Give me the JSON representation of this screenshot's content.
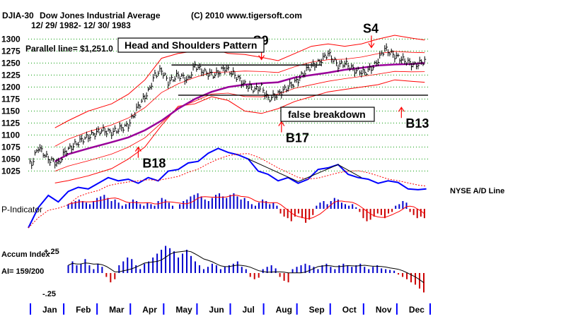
{
  "chart_data": {
    "type": "line",
    "header": {
      "symbol": "DJIA-30",
      "name": "Dow Jones Industrial Average",
      "copyright": "(C) 2010 www.tigersoft.com",
      "date_range": "12/ 29/ 1982- 12/ 30/ 1983"
    },
    "parallel_line_label": "Parallel line= $1,251.0",
    "y_axis": {
      "ylim": [
        1005,
        1305
      ],
      "ticks": [
        1300,
        1275,
        1250,
        1225,
        1200,
        1175,
        1150,
        1125,
        1100,
        1075,
        1050,
        1025
      ]
    },
    "months": [
      "Jan",
      "Feb",
      "Mar",
      "Apr",
      "May",
      "Jun",
      "Jul",
      "Aug",
      "Sep",
      "Oct",
      "Nov",
      "Dec"
    ],
    "djia": {
      "x": [
        0.1,
        0.3,
        0.6,
        0.9,
        1.1,
        1.4,
        1.6,
        1.9,
        2.2,
        2.5,
        2.8,
        3.0,
        3.3,
        3.6,
        3.8,
        4.0,
        4.2,
        4.5,
        4.8,
        5.0,
        5.3,
        5.6,
        5.9,
        6.2,
        6.5,
        6.8,
        7.0,
        7.2,
        7.5,
        7.8,
        8.1,
        8.4,
        8.7,
        9.0,
        9.3,
        9.5,
        9.8,
        10.1,
        10.4,
        10.7,
        11.0,
        11.3,
        11.6,
        11.9
      ],
      "values": [
        1040,
        1075,
        1050,
        1040,
        1065,
        1080,
        1090,
        1100,
        1110,
        1105,
        1115,
        1120,
        1160,
        1190,
        1225,
        1235,
        1210,
        1225,
        1215,
        1245,
        1230,
        1225,
        1240,
        1225,
        1205,
        1195,
        1200,
        1175,
        1185,
        1200,
        1215,
        1240,
        1250,
        1270,
        1245,
        1250,
        1235,
        1230,
        1245,
        1280,
        1265,
        1255,
        1245,
        1255
      ]
    },
    "overlays": {
      "x": [
        0.8,
        1.2,
        1.8,
        2.5,
        3.0,
        3.5,
        4.0,
        4.5,
        5.0,
        5.5,
        6.0,
        6.5,
        7.0,
        7.5,
        8.0,
        8.5,
        9.0,
        9.5,
        10.0,
        10.5,
        11.0,
        11.5,
        11.9
      ],
      "ma": [
        1045,
        1060,
        1072,
        1085,
        1095,
        1110,
        1130,
        1155,
        1175,
        1190,
        1200,
        1205,
        1208,
        1210,
        1220,
        1225,
        1230,
        1236,
        1240,
        1245,
        1247,
        1248,
        1250
      ],
      "upper_band": [
        1115,
        1130,
        1150,
        1165,
        1185,
        1215,
        1260,
        1270,
        1275,
        1280,
        1270,
        1268,
        1262,
        1255,
        1270,
        1285,
        1290,
        1285,
        1290,
        1300,
        1308,
        1302,
        1298
      ],
      "lower_band": [
        1000,
        1005,
        1015,
        1030,
        1050,
        1075,
        1120,
        1160,
        1165,
        1180,
        1172,
        1150,
        1145,
        1155,
        1170,
        1180,
        1190,
        1195,
        1200,
        1205,
        1215,
        1212,
        1210
      ]
    },
    "breadth_line": {
      "name": "NYSE A/D Line",
      "x": [
        0.0,
        0.3,
        0.6,
        0.9,
        1.2,
        1.5,
        1.8,
        2.1,
        2.4,
        2.7,
        3.0,
        3.3,
        3.6,
        3.9,
        4.2,
        4.5,
        4.8,
        5.1,
        5.4,
        5.7,
        6.0,
        6.3,
        6.6,
        6.9,
        7.2,
        7.5,
        7.8,
        8.1,
        8.4,
        8.7,
        9.0,
        9.3,
        9.6,
        9.9,
        10.2,
        10.5,
        10.8,
        11.1,
        11.4,
        11.7,
        11.95
      ],
      "values": [
        0.0,
        0.25,
        0.4,
        0.32,
        0.45,
        0.5,
        0.48,
        0.55,
        0.62,
        0.58,
        0.6,
        0.55,
        0.62,
        0.58,
        0.7,
        0.72,
        0.8,
        0.82,
        0.92,
        0.98,
        0.93,
        0.9,
        0.85,
        0.7,
        0.66,
        0.58,
        0.62,
        0.55,
        0.6,
        0.72,
        0.74,
        0.78,
        0.66,
        0.62,
        0.6,
        0.55,
        0.58,
        0.56,
        0.48,
        0.47,
        0.48
      ]
    },
    "p_indicator": {
      "label": "P-Indicator",
      "values": [
        0.3,
        0.4,
        0.5,
        0.6,
        0.5,
        0.4,
        0.3,
        0.5,
        0.7,
        0.8,
        0.9,
        0.7,
        0.5,
        0.6,
        0.4,
        0.2,
        0.3,
        0.4,
        0.6,
        0.5,
        0.3,
        0.2,
        0.4,
        0.3,
        0.2,
        0.5,
        0.7,
        0.6,
        0.4,
        0.2,
        0.0,
        0.3,
        0.5,
        0.6,
        0.8,
        0.9,
        1.0,
        0.8,
        0.6,
        0.5,
        0.7,
        0.9,
        1.0,
        0.8,
        0.7,
        0.9,
        1.0,
        0.8,
        0.6,
        0.7,
        0.5,
        0.3,
        0.2,
        0.4,
        0.6,
        0.5,
        0.3,
        0.4,
        0.2,
        -0.3,
        -0.5,
        -0.6,
        -0.8,
        -0.5,
        -0.3,
        -0.6,
        -0.9,
        -0.7,
        -0.4,
        0.2,
        0.4,
        0.5,
        0.3,
        0.5,
        0.7,
        0.6,
        0.4,
        0.3,
        0.2,
        0.3,
        0.1,
        -0.2,
        -0.6,
        -0.8,
        -0.7,
        -0.5,
        -0.3,
        -0.4,
        -0.6,
        -0.3,
        -0.2,
        0.2,
        0.3,
        0.5,
        0.4,
        -0.2,
        -0.4,
        -0.6,
        -0.5,
        -0.6
      ]
    },
    "accum_index": {
      "label": "Accum Index",
      "summary": "AI= 159/200",
      "ticks": [
        "+.25",
        "-.25"
      ],
      "values": [
        0.1,
        0.15,
        0.1,
        0.12,
        0.18,
        0.1,
        0.05,
        0.12,
        0.08,
        -0.05,
        -0.12,
        -0.08,
        0.1,
        0.15,
        0.2,
        0.18,
        0.1,
        0.05,
        0.12,
        0.15,
        0.2,
        0.25,
        0.3,
        0.35,
        0.32,
        0.28,
        0.2,
        0.25,
        0.3,
        0.22,
        0.15,
        0.1,
        0.05,
        0.08,
        0.12,
        0.1,
        0.05,
        0.08,
        0.1,
        0.12,
        0.15,
        0.08,
        0.05,
        -0.05,
        -0.08,
        -0.06,
        0.05,
        0.08,
        0.1,
        0.06,
        -0.05,
        -0.1,
        -0.12,
        0.05,
        0.08,
        0.1,
        0.12,
        0.1,
        0.08,
        0.05,
        0.1,
        0.12,
        0.08,
        0.05,
        0.1,
        0.12,
        0.1,
        0.08,
        0.1,
        0.12,
        0.08,
        0.05,
        0.08,
        0.1,
        0.06,
        0.05,
        0.04,
        0.03,
        -0.02,
        -0.05,
        -0.08,
        -0.12,
        -0.15,
        -0.2,
        -0.25
      ]
    },
    "annotations": {
      "title_box": "Head and Shoulders Pattern",
      "breakdown_box": "false breakdown",
      "signals": [
        {
          "label": "S9",
          "x": 7.0,
          "value": 1250,
          "direction": "down"
        },
        {
          "label": "S4",
          "x": 10.3,
          "value": 1275,
          "direction": "down"
        },
        {
          "label": "B17",
          "x": 7.6,
          "value": 1135,
          "direction": "up"
        },
        {
          "label": "B13",
          "x": 11.2,
          "value": 1165,
          "direction": "up"
        },
        {
          "label": "B18",
          "x": 3.3,
          "value": 1082,
          "direction": "up"
        }
      ]
    },
    "colors": {
      "price": "#000000",
      "bands": "#ff0000",
      "moving_average": "#990099",
      "ad_line": "#0000ff",
      "positive": "#0000cc",
      "negative": "#cc0000",
      "grid": "#009900",
      "axis_ticks": "#0000ff"
    }
  }
}
